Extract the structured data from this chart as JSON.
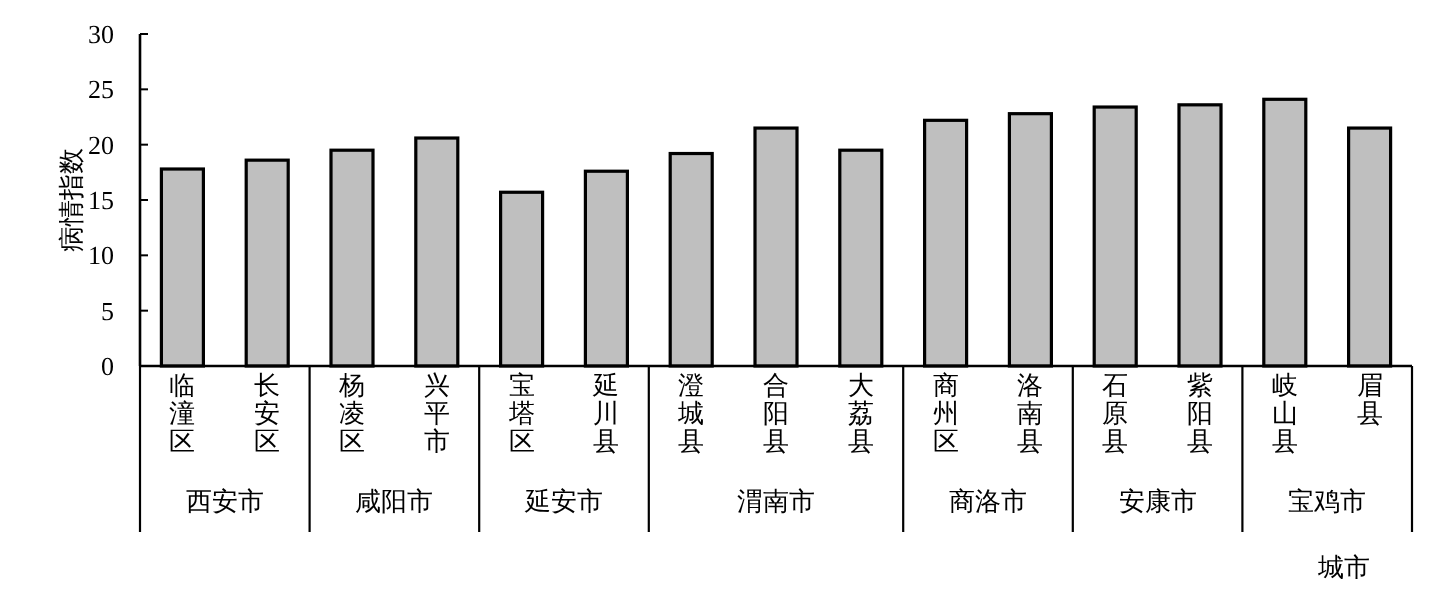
{
  "chart_data": {
    "type": "bar",
    "ylabel": "病情指数",
    "xlabel": "城市",
    "categories": [
      "临潼区",
      "长安区",
      "杨凌区",
      "兴平市",
      "宝塔区",
      "延川县",
      "澄城县",
      "合阳县",
      "大荔县",
      "商州区",
      "洛南县",
      "石原县",
      "紫阳县",
      "岐山县",
      "眉县"
    ],
    "values": [
      17.8,
      18.6,
      19.5,
      20.6,
      15.7,
      17.6,
      19.2,
      21.5,
      19.5,
      22.2,
      22.8,
      23.4,
      23.6,
      24.1,
      21.5
    ],
    "color": "#bfbfbf",
    "ylim": [
      0,
      30
    ],
    "yticks": [
      0,
      5,
      10,
      15,
      20,
      25,
      30
    ],
    "grid": false,
    "annotations": [
      "西安市",
      "咸阳市",
      "延安市",
      "渭南市",
      "商洛市",
      "安康市",
      "宝鸡市"
    ]
  }
}
